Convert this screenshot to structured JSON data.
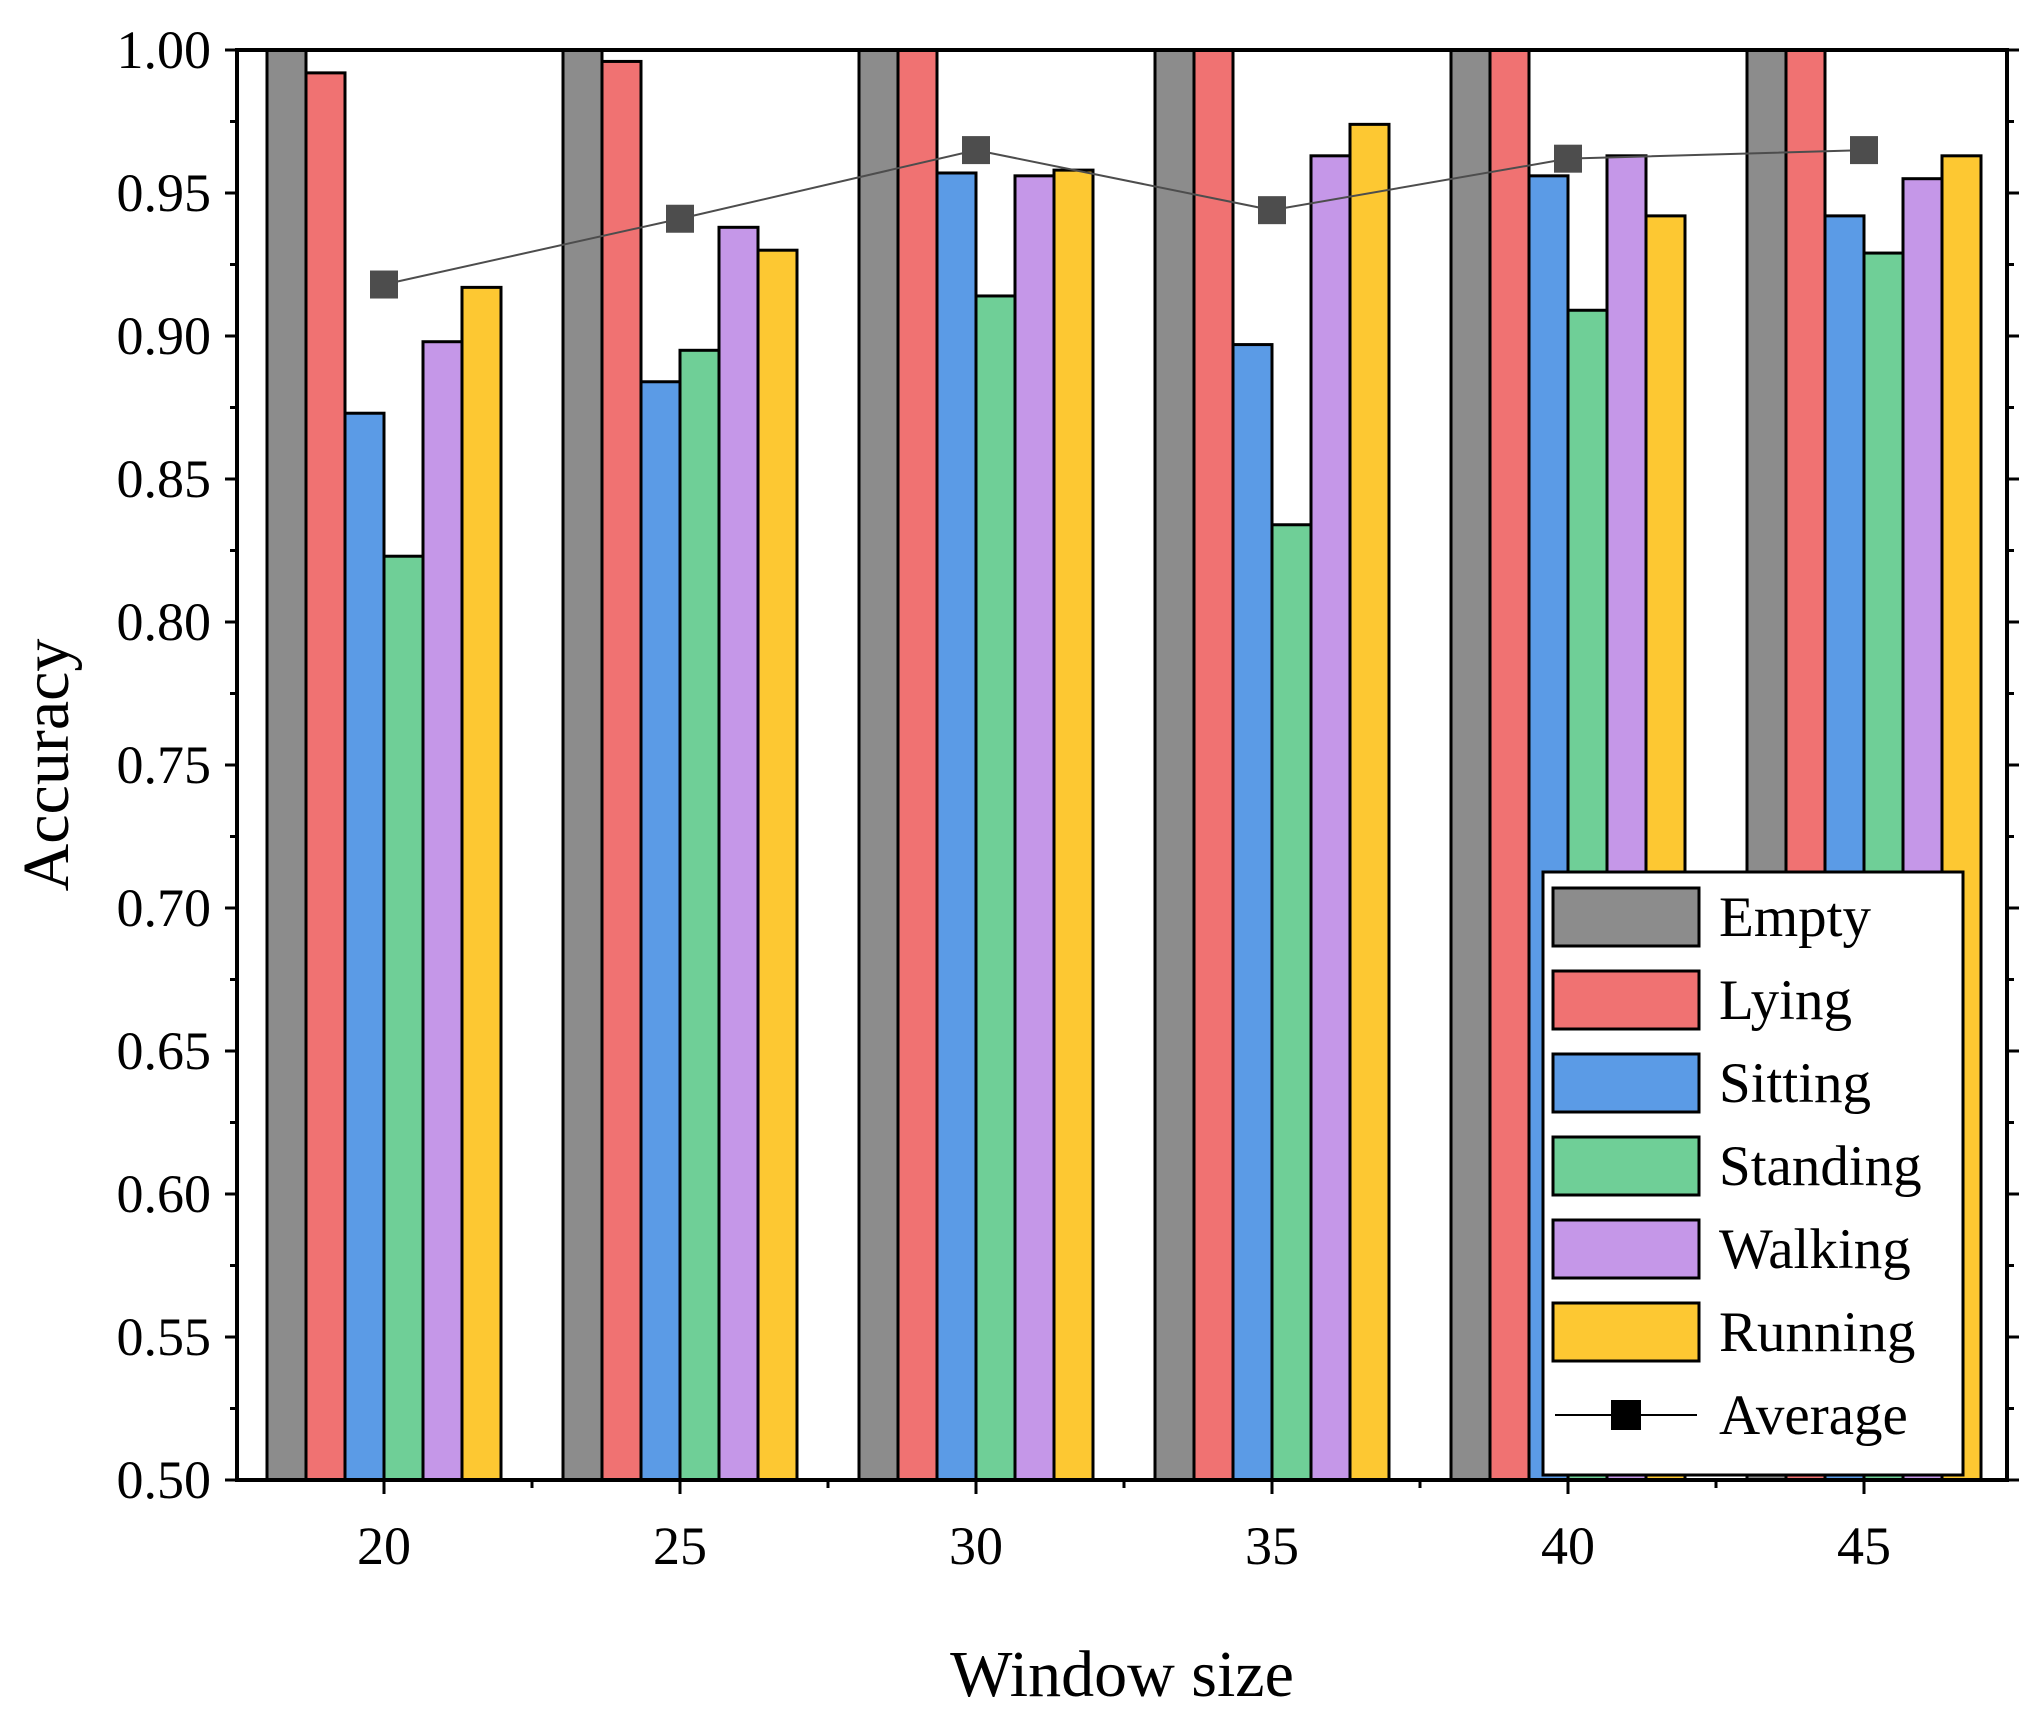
{
  "chart_data": {
    "type": "bar",
    "xlabel": "Window size",
    "ylabel": "Accuracy",
    "ylim": [
      0.5,
      1.0
    ],
    "yticks": [
      "0.50",
      "0.55",
      "0.60",
      "0.65",
      "0.70",
      "0.75",
      "0.80",
      "0.85",
      "0.90",
      "0.95",
      "1.00"
    ],
    "categories": [
      "20",
      "25",
      "30",
      "35",
      "40",
      "45"
    ],
    "series": [
      {
        "name": "Empty",
        "color": "#8c8c8c",
        "values": [
          1.0,
          1.0,
          1.0,
          1.0,
          1.0,
          1.0
        ]
      },
      {
        "name": "Lying",
        "color": "#f07272",
        "values": [
          0.992,
          0.996,
          1.0,
          1.0,
          1.0,
          1.0
        ]
      },
      {
        "name": "Sitting",
        "color": "#5b9be6",
        "values": [
          0.873,
          0.884,
          0.957,
          0.897,
          0.956,
          0.942
        ]
      },
      {
        "name": "Standing",
        "color": "#6fcf97",
        "values": [
          0.823,
          0.895,
          0.914,
          0.834,
          0.909,
          0.929
        ]
      },
      {
        "name": "Walking",
        "color": "#c597e8",
        "values": [
          0.898,
          0.938,
          0.956,
          0.963,
          0.963,
          0.955
        ]
      },
      {
        "name": "Running",
        "color": "#fdc832",
        "values": [
          0.917,
          0.93,
          0.958,
          0.974,
          0.942,
          0.963
        ]
      }
    ],
    "line_series": {
      "name": "Average",
      "color": "#4d4d4d",
      "values": [
        0.918,
        0.941,
        0.965,
        0.944,
        0.962,
        0.965
      ]
    },
    "legend_position": "bottom-right",
    "grid": false
  }
}
